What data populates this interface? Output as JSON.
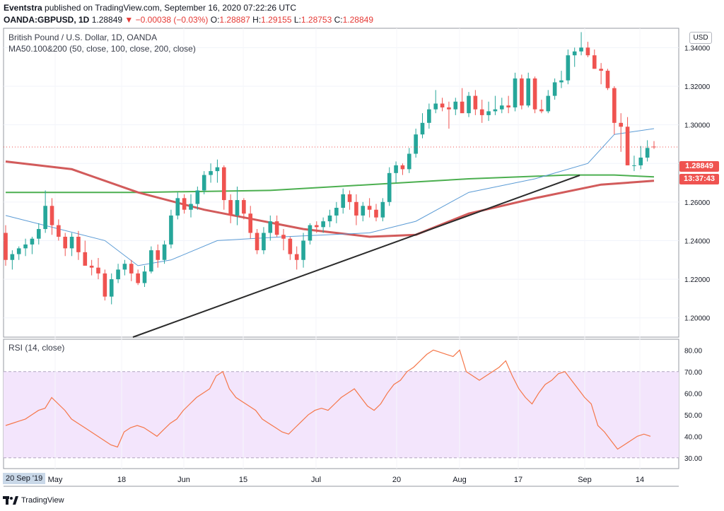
{
  "header": {
    "publisher": "Eventstra",
    "published_text": "published on TradingView.com, September 16, 2020 07:22:26 UTC",
    "symbol": "OANDA:GBPUSD, 1D",
    "last": "1.28849",
    "change": "−0.00038 (−0.03%)",
    "ohlc": {
      "o": "1.28887",
      "h": "1.29155",
      "l": "1.28753",
      "c": "1.28849"
    }
  },
  "chart_data": [
    {
      "type": "candlestick",
      "title": "British Pound / U.S. Dollar, 1D, OANDA",
      "indicator_label": "MA50.100&200 (50, close, 100, close, 200, close)",
      "currency": "USD",
      "ylim": [
        1.19,
        1.35
      ],
      "y_ticks": [
        "1.20000",
        "1.22000",
        "1.24000",
        "1.26000",
        "1.28000",
        "1.30000",
        "1.32000",
        "1.34000"
      ],
      "x_tick_labels": [
        "May",
        "18",
        "Jun",
        "15",
        "Jul",
        "20",
        "Aug",
        "17",
        "Sep",
        "14"
      ],
      "last_price_label": "1.28849",
      "countdown_label": "13:37:43",
      "colors": {
        "up": "#26a69a",
        "down": "#ef5350",
        "ma50": "#5b9bd5",
        "ma100": "#4caf50",
        "ma200": "#d25b5b",
        "trendline": "#2b2b2b"
      },
      "candles": [
        [
          1.244,
          1.248,
          1.227,
          1.23
        ],
        [
          1.23,
          1.235,
          1.225,
          1.233
        ],
        [
          1.233,
          1.237,
          1.23,
          1.236
        ],
        [
          1.236,
          1.241,
          1.232,
          1.238
        ],
        [
          1.238,
          1.242,
          1.233,
          1.241
        ],
        [
          1.241,
          1.249,
          1.238,
          1.246
        ],
        [
          1.246,
          1.266,
          1.244,
          1.258
        ],
        [
          1.258,
          1.262,
          1.243,
          1.248
        ],
        [
          1.248,
          1.251,
          1.24,
          1.242
        ],
        [
          1.242,
          1.244,
          1.232,
          1.236
        ],
        [
          1.236,
          1.244,
          1.232,
          1.242
        ],
        [
          1.242,
          1.245,
          1.23,
          1.234
        ],
        [
          1.234,
          1.24,
          1.228,
          1.227
        ],
        [
          1.227,
          1.23,
          1.222,
          1.226
        ],
        [
          1.226,
          1.231,
          1.22,
          1.223
        ],
        [
          1.223,
          1.225,
          1.209,
          1.211
        ],
        [
          1.211,
          1.223,
          1.207,
          1.22
        ],
        [
          1.22,
          1.228,
          1.218,
          1.225
        ],
        [
          1.225,
          1.23,
          1.222,
          1.228
        ],
        [
          1.228,
          1.23,
          1.219,
          1.223
        ],
        [
          1.223,
          1.225,
          1.217,
          1.218
        ],
        [
          1.218,
          1.227,
          1.216,
          1.224
        ],
        [
          1.224,
          1.237,
          1.223,
          1.235
        ],
        [
          1.235,
          1.238,
          1.226,
          1.23
        ],
        [
          1.23,
          1.24,
          1.228,
          1.238
        ],
        [
          1.238,
          1.256,
          1.236,
          1.253
        ],
        [
          1.253,
          1.265,
          1.251,
          1.262
        ],
        [
          1.262,
          1.264,
          1.254,
          1.256
        ],
        [
          1.256,
          1.264,
          1.252,
          1.259
        ],
        [
          1.259,
          1.268,
          1.256,
          1.266
        ],
        [
          1.266,
          1.276,
          1.264,
          1.274
        ],
        [
          1.274,
          1.28,
          1.27,
          1.276
        ],
        [
          1.276,
          1.282,
          1.27,
          1.278
        ],
        [
          1.278,
          1.279,
          1.256,
          1.261
        ],
        [
          1.261,
          1.264,
          1.249,
          1.253
        ],
        [
          1.253,
          1.268,
          1.248,
          1.261
        ],
        [
          1.261,
          1.262,
          1.251,
          1.254
        ],
        [
          1.254,
          1.258,
          1.241,
          1.244
        ],
        [
          1.244,
          1.246,
          1.233,
          1.235
        ],
        [
          1.235,
          1.247,
          1.233,
          1.244
        ],
        [
          1.244,
          1.253,
          1.24,
          1.25
        ],
        [
          1.25,
          1.253,
          1.242,
          1.243
        ],
        [
          1.243,
          1.246,
          1.235,
          1.241
        ],
        [
          1.241,
          1.242,
          1.23,
          1.233
        ],
        [
          1.233,
          1.237,
          1.225,
          1.23
        ],
        [
          1.23,
          1.244,
          1.226,
          1.24
        ],
        [
          1.24,
          1.249,
          1.238,
          1.248
        ],
        [
          1.248,
          1.25,
          1.244,
          1.247
        ],
        [
          1.247,
          1.252,
          1.244,
          1.25
        ],
        [
          1.25,
          1.256,
          1.247,
          1.253
        ],
        [
          1.253,
          1.26,
          1.249,
          1.257
        ],
        [
          1.257,
          1.267,
          1.254,
          1.264
        ],
        [
          1.264,
          1.266,
          1.256,
          1.26
        ],
        [
          1.26,
          1.264,
          1.248,
          1.253
        ],
        [
          1.253,
          1.26,
          1.25,
          1.258
        ],
        [
          1.258,
          1.262,
          1.252,
          1.256
        ],
        [
          1.256,
          1.259,
          1.25,
          1.252
        ],
        [
          1.252,
          1.262,
          1.25,
          1.26
        ],
        [
          1.26,
          1.278,
          1.258,
          1.275
        ],
        [
          1.275,
          1.281,
          1.27,
          1.279
        ],
        [
          1.279,
          1.28,
          1.274,
          1.277
        ],
        [
          1.277,
          1.288,
          1.275,
          1.285
        ],
        [
          1.285,
          1.298,
          1.283,
          1.295
        ],
        [
          1.295,
          1.306,
          1.293,
          1.301
        ],
        [
          1.301,
          1.311,
          1.298,
          1.308
        ],
        [
          1.308,
          1.318,
          1.306,
          1.311
        ],
        [
          1.311,
          1.314,
          1.307,
          1.309
        ],
        [
          1.309,
          1.312,
          1.298,
          1.308
        ],
        [
          1.308,
          1.314,
          1.305,
          1.312
        ],
        [
          1.312,
          1.319,
          1.307,
          1.306
        ],
        [
          1.306,
          1.317,
          1.304,
          1.315
        ],
        [
          1.315,
          1.318,
          1.305,
          1.308
        ],
        [
          1.308,
          1.313,
          1.301,
          1.305
        ],
        [
          1.305,
          1.312,
          1.302,
          1.307
        ],
        [
          1.307,
          1.315,
          1.305,
          1.308
        ],
        [
          1.308,
          1.314,
          1.306,
          1.31
        ],
        [
          1.31,
          1.315,
          1.306,
          1.309
        ],
        [
          1.309,
          1.327,
          1.307,
          1.324
        ],
        [
          1.324,
          1.326,
          1.308,
          1.31
        ],
        [
          1.31,
          1.327,
          1.309,
          1.324
        ],
        [
          1.324,
          1.325,
          1.306,
          1.308
        ],
        [
          1.308,
          1.313,
          1.306,
          1.307
        ],
        [
          1.307,
          1.318,
          1.306,
          1.315
        ],
        [
          1.315,
          1.324,
          1.313,
          1.322
        ],
        [
          1.322,
          1.328,
          1.319,
          1.323
        ],
        [
          1.323,
          1.339,
          1.321,
          1.336
        ],
        [
          1.336,
          1.34,
          1.33,
          1.338
        ],
        [
          1.338,
          1.348,
          1.336,
          1.34
        ],
        [
          1.34,
          1.343,
          1.335,
          1.336
        ],
        [
          1.336,
          1.339,
          1.329,
          1.329
        ],
        [
          1.329,
          1.332,
          1.321,
          1.328
        ],
        [
          1.328,
          1.329,
          1.318,
          1.319
        ],
        [
          1.319,
          1.32,
          1.295,
          1.301
        ],
        [
          1.301,
          1.306,
          1.286,
          1.299
        ],
        [
          1.299,
          1.304,
          1.279,
          1.279
        ],
        [
          1.279,
          1.284,
          1.276,
          1.279
        ],
        [
          1.279,
          1.289,
          1.277,
          1.283
        ],
        [
          1.283,
          1.292,
          1.281,
          1.288
        ],
        [
          1.2887,
          1.29155,
          1.28753,
          1.28849
        ]
      ],
      "ma50": [
        [
          0,
          1.253
        ],
        [
          15,
          1.24
        ],
        [
          20,
          1.227
        ],
        [
          25,
          1.23
        ],
        [
          32,
          1.24
        ],
        [
          42,
          1.242
        ],
        [
          55,
          1.244
        ],
        [
          62,
          1.25
        ],
        [
          70,
          1.265
        ],
        [
          80,
          1.272
        ],
        [
          88,
          1.28
        ],
        [
          92,
          1.295
        ],
        [
          98,
          1.298
        ]
      ],
      "ma100": [
        [
          0,
          1.265
        ],
        [
          20,
          1.265
        ],
        [
          40,
          1.266
        ],
        [
          60,
          1.27
        ],
        [
          70,
          1.272
        ],
        [
          85,
          1.274
        ],
        [
          92,
          1.274
        ],
        [
          98,
          1.273
        ]
      ],
      "ma200": [
        [
          0,
          1.281
        ],
        [
          10,
          1.277
        ],
        [
          20,
          1.265
        ],
        [
          30,
          1.256
        ],
        [
          45,
          1.246
        ],
        [
          55,
          1.242
        ],
        [
          62,
          1.243
        ],
        [
          70,
          1.254
        ],
        [
          80,
          1.262
        ],
        [
          90,
          1.269
        ],
        [
          98,
          1.271
        ]
      ]
    },
    {
      "type": "line",
      "title": "RSI (14, close)",
      "ylim": [
        25,
        85
      ],
      "y_ticks": [
        "30.00",
        "40.00",
        "50.00",
        "60.00",
        "70.00",
        "80.00"
      ],
      "band": [
        30,
        70
      ],
      "date_label": "20 Sep '19",
      "values": [
        45,
        46,
        47,
        48,
        50,
        52,
        53,
        58,
        55,
        52,
        48,
        46,
        44,
        42,
        40,
        38,
        36,
        35,
        42,
        44,
        45,
        44,
        42,
        40,
        43,
        46,
        48,
        52,
        55,
        58,
        60,
        62,
        68,
        70,
        62,
        58,
        56,
        54,
        52,
        48,
        46,
        44,
        42,
        41,
        44,
        47,
        50,
        52,
        53,
        52,
        55,
        58,
        60,
        62,
        58,
        54,
        52,
        55,
        60,
        64,
        66,
        70,
        72,
        75,
        78,
        80,
        79,
        78,
        77,
        80,
        70,
        68,
        66,
        68,
        70,
        72,
        75,
        68,
        62,
        58,
        55,
        60,
        64,
        66,
        69,
        70,
        66,
        62,
        58,
        55,
        45,
        42,
        38,
        34,
        36,
        38,
        40,
        41,
        40
      ]
    }
  ],
  "footer": {
    "brand": "TradingView"
  }
}
